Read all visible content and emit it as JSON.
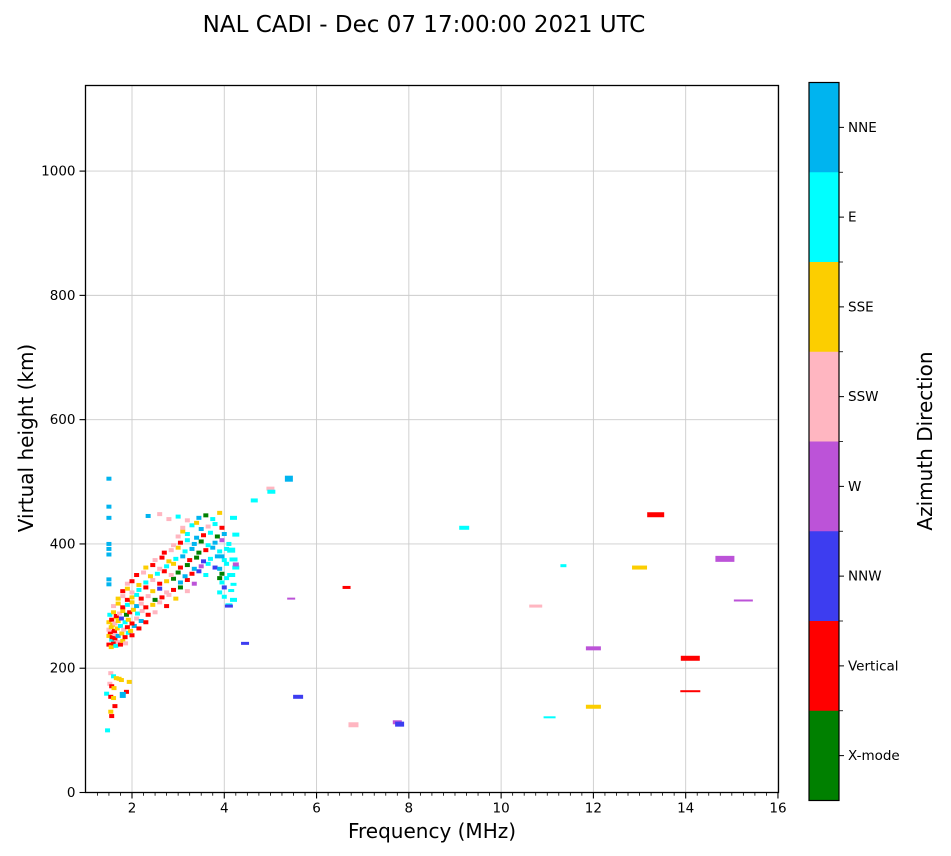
{
  "title": "NAL CADI - Dec 07 17:00:00 2021 UTC",
  "chart_data": {
    "type": "scatter",
    "title": "NAL CADI - Dec 07 17:00:00 2021 UTC",
    "xlabel": "Frequency (MHz)",
    "ylabel": "Virtual height (km)",
    "xlim": [
      1,
      16
    ],
    "ylim": [
      0,
      1140
    ],
    "xticks": [
      2,
      4,
      6,
      8,
      10,
      12,
      14,
      16
    ],
    "yticks": [
      0,
      200,
      400,
      600,
      800,
      1000
    ],
    "x_minor_step": 0.25,
    "grid": true,
    "grid_color": "#cccccc",
    "legend": {
      "title": "Azimuth Direction",
      "position": "right-colorbar",
      "categories": [
        {
          "label": "NNE",
          "color": "#00b4ef"
        },
        {
          "label": "E",
          "color": "#00ffff"
        },
        {
          "label": "SSE",
          "color": "#fcce00"
        },
        {
          "label": "SSW",
          "color": "#ffb6c1"
        },
        {
          "label": "W",
          "color": "#bc53d8"
        },
        {
          "label": "NNW",
          "color": "#3d3df0"
        },
        {
          "label": "Vertical",
          "color": "#ff0000"
        },
        {
          "label": "X-mode",
          "color": "#008000"
        }
      ]
    },
    "point_note": "points are [freq_MHz, virtual_height_km, category, width_px?, height_px?]",
    "points": [
      [
        1.5,
        505,
        "NNE"
      ],
      [
        1.5,
        460,
        "NNE"
      ],
      [
        1.5,
        442,
        "NNE"
      ],
      [
        1.5,
        400,
        "NNE"
      ],
      [
        1.5,
        392,
        "NNE"
      ],
      [
        1.5,
        383,
        "NNE"
      ],
      [
        1.5,
        343,
        "NNE"
      ],
      [
        1.5,
        335,
        "NNE"
      ],
      [
        1.54,
        192,
        "SSW"
      ],
      [
        1.6,
        187,
        "E"
      ],
      [
        1.66,
        184,
        "SSE"
      ],
      [
        1.72,
        183,
        "SSE"
      ],
      [
        1.77,
        181,
        "SSE"
      ],
      [
        1.94,
        178,
        "SSE"
      ],
      [
        1.52,
        175,
        "SSW"
      ],
      [
        1.56,
        171,
        "Vertical"
      ],
      [
        1.61,
        168,
        "SSE"
      ],
      [
        1.88,
        162,
        "Vertical"
      ],
      [
        1.8,
        157,
        "NNE",
        6,
        6
      ],
      [
        1.45,
        159,
        "E"
      ],
      [
        1.54,
        154,
        "Vertical"
      ],
      [
        1.6,
        152,
        "SSE"
      ],
      [
        1.63,
        139,
        "Vertical"
      ],
      [
        1.54,
        130,
        "SSE"
      ],
      [
        1.56,
        123,
        "Vertical"
      ],
      [
        1.47,
        100,
        "E"
      ],
      [
        1.5,
        238,
        "Vertical"
      ],
      [
        1.55,
        234,
        "SSE"
      ],
      [
        1.6,
        240,
        "Vertical"
      ],
      [
        1.65,
        236,
        "E"
      ],
      [
        1.7,
        242,
        "SSW"
      ],
      [
        1.75,
        238,
        "Vertical"
      ],
      [
        1.8,
        244,
        "SSE"
      ],
      [
        1.56,
        246,
        "E"
      ],
      [
        1.63,
        248,
        "Vertical"
      ],
      [
        1.86,
        240,
        "SSW"
      ],
      [
        1.5,
        252,
        "SSE"
      ],
      [
        1.57,
        250,
        "Vertical"
      ],
      [
        1.63,
        255,
        "SSW"
      ],
      [
        1.7,
        252,
        "NNE"
      ],
      [
        1.78,
        256,
        "SSE"
      ],
      [
        1.85,
        250,
        "Vertical"
      ],
      [
        1.92,
        257,
        "E"
      ],
      [
        2.0,
        253,
        "Vertical"
      ],
      [
        1.53,
        258,
        "Vertical"
      ],
      [
        1.5,
        262,
        "SSW"
      ],
      [
        1.55,
        266,
        "SSE"
      ],
      [
        1.62,
        260,
        "Vertical"
      ],
      [
        1.68,
        264,
        "SSE"
      ],
      [
        1.75,
        268,
        "E"
      ],
      [
        1.82,
        262,
        "SSW"
      ],
      [
        1.9,
        266,
        "Vertical"
      ],
      [
        1.97,
        260,
        "SSE"
      ],
      [
        2.05,
        268,
        "NNE"
      ],
      [
        2.15,
        264,
        "Vertical"
      ],
      [
        1.58,
        270,
        "SSE"
      ],
      [
        1.5,
        274,
        "SSE"
      ],
      [
        1.56,
        278,
        "Vertical"
      ],
      [
        1.63,
        272,
        "SSW"
      ],
      [
        1.7,
        276,
        "SSE"
      ],
      [
        1.77,
        280,
        "NNW"
      ],
      [
        1.85,
        274,
        "E"
      ],
      [
        1.92,
        278,
        "SSE"
      ],
      [
        2.0,
        272,
        "Vertical"
      ],
      [
        2.1,
        280,
        "SSW"
      ],
      [
        2.2,
        276,
        "NNE"
      ],
      [
        2.3,
        274,
        "Vertical"
      ],
      [
        1.66,
        282,
        "SSE"
      ],
      [
        1.52,
        286,
        "E"
      ],
      [
        1.6,
        290,
        "SSE"
      ],
      [
        1.66,
        284,
        "Vertical"
      ],
      [
        1.73,
        288,
        "SSW"
      ],
      [
        1.8,
        292,
        "SSE"
      ],
      [
        1.88,
        286,
        "X-mode"
      ],
      [
        1.95,
        290,
        "Vertical"
      ],
      [
        2.03,
        294,
        "SSE"
      ],
      [
        2.12,
        288,
        "E"
      ],
      [
        2.22,
        292,
        "SSW"
      ],
      [
        2.35,
        286,
        "Vertical"
      ],
      [
        2.5,
        290,
        "SSW"
      ],
      [
        1.6,
        300,
        "SSW"
      ],
      [
        1.7,
        304,
        "SSE"
      ],
      [
        1.8,
        298,
        "Vertical"
      ],
      [
        1.9,
        302,
        "E"
      ],
      [
        2.0,
        306,
        "SSE"
      ],
      [
        2.1,
        300,
        "NNE"
      ],
      [
        2.2,
        304,
        "SSW"
      ],
      [
        2.3,
        298,
        "Vertical"
      ],
      [
        2.45,
        302,
        "SSE"
      ],
      [
        2.6,
        306,
        "SSW"
      ],
      [
        2.75,
        300,
        "Vertical"
      ],
      [
        1.7,
        312,
        "SSE"
      ],
      [
        1.8,
        316,
        "SSW"
      ],
      [
        1.9,
        310,
        "Vertical"
      ],
      [
        2.0,
        314,
        "SSE"
      ],
      [
        2.1,
        318,
        "E"
      ],
      [
        2.2,
        312,
        "Vertical"
      ],
      [
        2.35,
        316,
        "SSW"
      ],
      [
        2.5,
        310,
        "X-mode"
      ],
      [
        2.65,
        314,
        "Vertical"
      ],
      [
        2.8,
        318,
        "SSW"
      ],
      [
        2.95,
        312,
        "SSE"
      ],
      [
        1.8,
        324,
        "Vertical"
      ],
      [
        1.9,
        328,
        "SSE"
      ],
      [
        2.0,
        322,
        "SSW"
      ],
      [
        2.15,
        326,
        "E"
      ],
      [
        2.3,
        330,
        "Vertical"
      ],
      [
        2.45,
        324,
        "SSE"
      ],
      [
        2.6,
        328,
        "NNW"
      ],
      [
        2.75,
        322,
        "SSW"
      ],
      [
        2.9,
        326,
        "Vertical"
      ],
      [
        3.05,
        330,
        "X-mode"
      ],
      [
        3.2,
        324,
        "SSW"
      ],
      [
        1.9,
        336,
        "SSW"
      ],
      [
        2.0,
        340,
        "Vertical"
      ],
      [
        2.15,
        334,
        "SSE"
      ],
      [
        2.3,
        338,
        "E"
      ],
      [
        2.45,
        342,
        "SSW"
      ],
      [
        2.6,
        336,
        "Vertical"
      ],
      [
        2.75,
        340,
        "SSE"
      ],
      [
        2.9,
        344,
        "X-mode"
      ],
      [
        3.05,
        338,
        "NNE"
      ],
      [
        3.2,
        342,
        "Vertical"
      ],
      [
        3.35,
        336,
        "W"
      ],
      [
        3.9,
        345,
        "X-mode"
      ],
      [
        2.1,
        350,
        "Vertical"
      ],
      [
        2.25,
        354,
        "SSW"
      ],
      [
        2.4,
        348,
        "SSE"
      ],
      [
        2.55,
        352,
        "E"
      ],
      [
        2.7,
        356,
        "Vertical"
      ],
      [
        2.85,
        350,
        "SSW"
      ],
      [
        3.0,
        354,
        "X-mode"
      ],
      [
        3.15,
        348,
        "NNE"
      ],
      [
        3.3,
        352,
        "Vertical"
      ],
      [
        3.45,
        356,
        "NNW"
      ],
      [
        3.6,
        350,
        "E"
      ],
      [
        3.95,
        352,
        "X-mode"
      ],
      [
        4.15,
        350,
        "E",
        8,
        4
      ],
      [
        2.3,
        362,
        "SSE"
      ],
      [
        2.45,
        366,
        "Vertical"
      ],
      [
        2.6,
        360,
        "SSW"
      ],
      [
        2.75,
        364,
        "E"
      ],
      [
        2.9,
        368,
        "SSE"
      ],
      [
        3.05,
        362,
        "Vertical"
      ],
      [
        3.2,
        366,
        "X-mode"
      ],
      [
        3.35,
        360,
        "NNE"
      ],
      [
        3.5,
        364,
        "W"
      ],
      [
        3.65,
        368,
        "E"
      ],
      [
        3.8,
        362,
        "NNW"
      ],
      [
        3.9,
        360,
        "NNE"
      ],
      [
        4.25,
        362,
        "E",
        7,
        4
      ],
      [
        4.25,
        367,
        "W",
        6,
        4
      ],
      [
        2.5,
        374,
        "SSW"
      ],
      [
        2.65,
        378,
        "Vertical"
      ],
      [
        2.8,
        372,
        "SSE"
      ],
      [
        2.95,
        376,
        "E"
      ],
      [
        3.1,
        380,
        "NNE"
      ],
      [
        3.25,
        374,
        "Vertical"
      ],
      [
        3.4,
        378,
        "X-mode"
      ],
      [
        3.55,
        372,
        "NNW"
      ],
      [
        3.7,
        376,
        "E"
      ],
      [
        3.85,
        380,
        "NNE"
      ],
      [
        4.0,
        374,
        "E"
      ],
      [
        4.2,
        375,
        "E",
        8,
        4
      ],
      [
        3.95,
        380,
        "NNE"
      ],
      [
        2.7,
        386,
        "Vertical"
      ],
      [
        2.85,
        390,
        "SSW"
      ],
      [
        3.0,
        394,
        "SSE"
      ],
      [
        3.15,
        388,
        "E"
      ],
      [
        3.3,
        392,
        "NNE"
      ],
      [
        3.45,
        386,
        "X-mode"
      ],
      [
        3.6,
        390,
        "Vertical"
      ],
      [
        3.75,
        394,
        "NNE"
      ],
      [
        3.9,
        388,
        "E"
      ],
      [
        4.05,
        392,
        "E"
      ],
      [
        4.15,
        390,
        "E",
        8,
        5
      ],
      [
        2.9,
        398,
        "SSW"
      ],
      [
        3.05,
        402,
        "Vertical"
      ],
      [
        3.2,
        406,
        "E"
      ],
      [
        3.35,
        400,
        "NNE"
      ],
      [
        3.5,
        404,
        "X-mode"
      ],
      [
        3.65,
        398,
        "E"
      ],
      [
        3.8,
        402,
        "NNE"
      ],
      [
        3.95,
        406,
        "W"
      ],
      [
        4.1,
        400,
        "E"
      ],
      [
        3.0,
        412,
        "SSW"
      ],
      [
        3.2,
        416,
        "E"
      ],
      [
        3.4,
        410,
        "NNE"
      ],
      [
        3.55,
        414,
        "Vertical"
      ],
      [
        3.7,
        418,
        "E"
      ],
      [
        3.85,
        412,
        "X-mode"
      ],
      [
        4.0,
        416,
        "NNE"
      ],
      [
        4.25,
        415,
        "E",
        7,
        4
      ],
      [
        3.1,
        420,
        "SSE"
      ],
      [
        3.1,
        426,
        "SSW"
      ],
      [
        3.3,
        430,
        "E"
      ],
      [
        3.5,
        424,
        "NNE"
      ],
      [
        3.65,
        428,
        "SSW"
      ],
      [
        3.8,
        432,
        "E"
      ],
      [
        3.95,
        426,
        "Vertical"
      ],
      [
        3.4,
        434,
        "SSE"
      ],
      [
        2.8,
        440,
        "SSW"
      ],
      [
        3.0,
        444,
        "E"
      ],
      [
        3.2,
        438,
        "SSW"
      ],
      [
        3.45,
        442,
        "NNE"
      ],
      [
        3.6,
        446,
        "X-mode"
      ],
      [
        3.75,
        440,
        "E"
      ],
      [
        3.9,
        450,
        "SSE"
      ],
      [
        4.2,
        442,
        "E",
        7,
        4
      ],
      [
        2.6,
        448,
        "SSW"
      ],
      [
        2.35,
        445,
        "NNE"
      ],
      [
        4.0,
        330,
        "NNW"
      ],
      [
        3.95,
        338,
        "E"
      ],
      [
        4.05,
        345,
        "E"
      ],
      [
        3.9,
        322,
        "E"
      ],
      [
        4.0,
        315,
        "E"
      ],
      [
        4.2,
        335,
        "E",
        6,
        3
      ],
      [
        4.15,
        325,
        "E",
        6,
        3
      ],
      [
        4.2,
        310,
        "E",
        7,
        4
      ],
      [
        4.1,
        302,
        "E",
        7,
        3
      ],
      [
        4.1,
        300,
        "NNW",
        8,
        3
      ],
      [
        4.05,
        368,
        "E"
      ],
      [
        4.65,
        470,
        "E",
        7,
        4
      ],
      [
        5.0,
        489,
        "SSW",
        8,
        4
      ],
      [
        5.02,
        484,
        "E",
        8,
        4
      ],
      [
        5.4,
        505,
        "NNE",
        8,
        6
      ],
      [
        4.45,
        240,
        "NNW",
        8,
        3
      ],
      [
        5.45,
        312,
        "W",
        8,
        2
      ],
      [
        5.6,
        154,
        "NNW",
        10,
        4
      ],
      [
        6.65,
        330,
        "Vertical",
        8,
        3
      ],
      [
        6.8,
        109,
        "SSW",
        10,
        5
      ],
      [
        7.75,
        113,
        "W",
        9,
        4
      ],
      [
        7.8,
        110,
        "NNW",
        9,
        5
      ],
      [
        9.2,
        426,
        "E",
        10,
        4
      ],
      [
        10.75,
        300,
        "SSW",
        13,
        3
      ],
      [
        11.05,
        121,
        "E",
        12,
        2
      ],
      [
        11.35,
        365,
        "E",
        6,
        3
      ],
      [
        12.0,
        232,
        "W",
        15,
        4
      ],
      [
        12.0,
        138,
        "SSE",
        15,
        4
      ],
      [
        13.0,
        362,
        "SSE",
        15,
        4
      ],
      [
        13.35,
        447,
        "Vertical",
        17,
        5
      ],
      [
        14.1,
        216,
        "Vertical",
        19,
        5
      ],
      [
        14.1,
        163,
        "Vertical",
        20,
        2
      ],
      [
        14.85,
        376,
        "W",
        19,
        6
      ],
      [
        15.25,
        309,
        "W",
        19,
        2
      ]
    ]
  }
}
